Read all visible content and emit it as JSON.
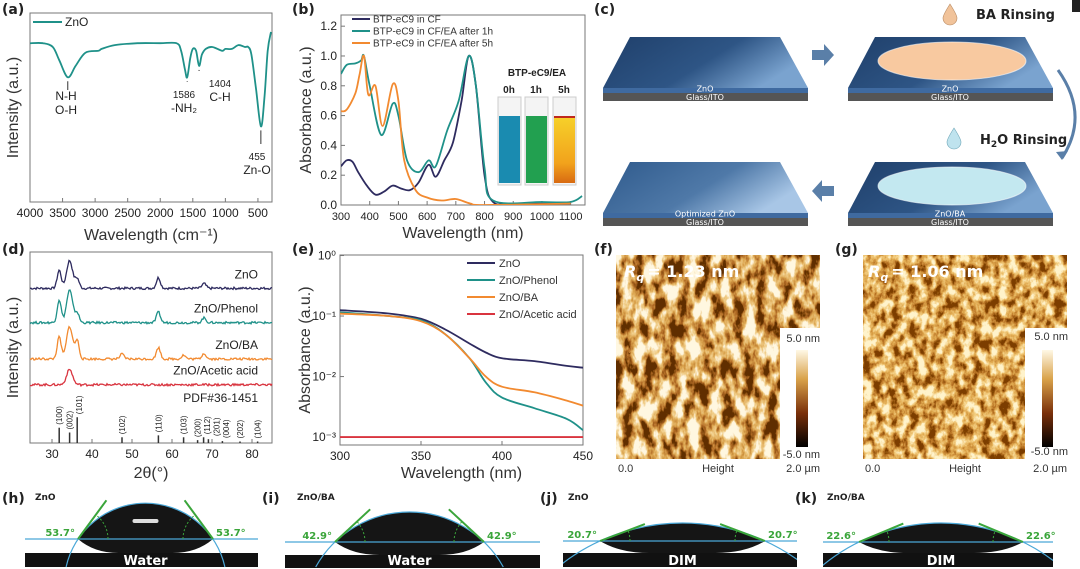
{
  "panel_labels": {
    "a": "(a)",
    "b": "(b)",
    "c": "(c)",
    "d": "(d)",
    "e": "(e)",
    "f": "(f)",
    "g": "(g)",
    "h": "(h)",
    "i": "(i)",
    "j": "(j)",
    "k": "(k)"
  },
  "colors": {
    "navy": "#2e2b5f",
    "teal": "#1f9189",
    "orange": "#f28a30",
    "red": "#d9343f",
    "blue_slab": "#2a4f7c",
    "ba_liquid": "#f8c9a0",
    "water_liquid": "#c3e8f0",
    "tangent": "#3aa53a",
    "baseline": "#4aa8d8"
  },
  "chart_data": [
    {
      "id": "a",
      "type": "line",
      "xlabel": "Wavelength (cm⁻¹)",
      "ylabel": "Intensity (a.u.)",
      "xlim": [
        4000,
        284
      ],
      "ylim": [
        0,
        1
      ],
      "xticks": [
        4000,
        3500,
        3000,
        2500,
        2000,
        1500,
        1000,
        500
      ],
      "legend": "top-left",
      "grid": false,
      "series": [
        {
          "name": "ZnO",
          "color": "#1f9189",
          "points": [
            [
              4000,
              0.84
            ],
            [
              3800,
              0.84
            ],
            [
              3650,
              0.82
            ],
            [
              3550,
              0.75
            ],
            [
              3420,
              0.66
            ],
            [
              3300,
              0.72
            ],
            [
              3150,
              0.79
            ],
            [
              2950,
              0.8
            ],
            [
              2900,
              0.81
            ],
            [
              2700,
              0.83
            ],
            [
              2350,
              0.84
            ],
            [
              2000,
              0.84
            ],
            [
              1750,
              0.84
            ],
            [
              1680,
              0.8
            ],
            [
              1620,
              0.7
            ],
            [
              1586,
              0.66
            ],
            [
              1540,
              0.76
            ],
            [
              1500,
              0.81
            ],
            [
              1450,
              0.8
            ],
            [
              1404,
              0.72
            ],
            [
              1360,
              0.78
            ],
            [
              1300,
              0.81
            ],
            [
              1200,
              0.82
            ],
            [
              1050,
              0.8
            ],
            [
              1000,
              0.81
            ],
            [
              900,
              0.81
            ],
            [
              800,
              0.83
            ],
            [
              700,
              0.82
            ],
            [
              650,
              0.82
            ],
            [
              600,
              0.78
            ],
            [
              530,
              0.6
            ],
            [
              455,
              0.4
            ],
            [
              400,
              0.55
            ],
            [
              350,
              0.8
            ],
            [
              300,
              0.9
            ]
          ]
        }
      ],
      "annotations": [
        {
          "peak": 3420,
          "lines": [
            "N-H",
            "O-H"
          ]
        },
        {
          "peak": 1586,
          "value": "1586",
          "lines": [
            "-NH₂"
          ]
        },
        {
          "peak": 1404,
          "value": "1404",
          "lines": [
            "C-H"
          ]
        },
        {
          "peak": 455,
          "value": "455",
          "lines": [
            "Zn-O"
          ]
        }
      ]
    },
    {
      "id": "b",
      "type": "line",
      "xlabel": "Wavelength (nm)",
      "ylabel": "Absorbance (a.u.)",
      "xlim": [
        300,
        1150
      ],
      "ylim": [
        0,
        1.275
      ],
      "xticks": [
        300,
        400,
        500,
        600,
        700,
        800,
        900,
        1000,
        1100
      ],
      "yticks": [
        "0.0",
        "0.2",
        "0.4",
        "0.6",
        "0.8",
        "1.0",
        "1.2"
      ],
      "legend": "top-left",
      "grid": false,
      "series": [
        {
          "name": "BTP-eC9 in CF",
          "color": "#2e2b5f",
          "points": [
            [
              300,
              0.26
            ],
            [
              320,
              0.3
            ],
            [
              340,
              0.29
            ],
            [
              360,
              0.22
            ],
            [
              390,
              0.13
            ],
            [
              420,
              0.07
            ],
            [
              450,
              0.09
            ],
            [
              480,
              0.13
            ],
            [
              510,
              0.11
            ],
            [
              540,
              0.1
            ],
            [
              570,
              0.15
            ],
            [
              605,
              0.27
            ],
            [
              630,
              0.19
            ],
            [
              660,
              0.3
            ],
            [
              690,
              0.42
            ],
            [
              720,
              0.7
            ],
            [
              745,
              1.0
            ],
            [
              770,
              0.8
            ],
            [
              800,
              0.2
            ],
            [
              830,
              0.02
            ],
            [
              900,
              0.01
            ],
            [
              1100,
              0.01
            ]
          ]
        },
        {
          "name": "BTP-eC9 in CF/EA after 1h",
          "color": "#1f9189",
          "points": [
            [
              300,
              0.88
            ],
            [
              320,
              0.94
            ],
            [
              350,
              0.95
            ],
            [
              370,
              0.97
            ],
            [
              380,
              1.0
            ],
            [
              400,
              0.8
            ],
            [
              440,
              0.47
            ],
            [
              480,
              0.68
            ],
            [
              500,
              0.6
            ],
            [
              530,
              0.3
            ],
            [
              570,
              0.22
            ],
            [
              605,
              0.3
            ],
            [
              630,
              0.26
            ],
            [
              670,
              0.5
            ],
            [
              710,
              0.7
            ],
            [
              745,
              1.0
            ],
            [
              770,
              0.8
            ],
            [
              800,
              0.25
            ],
            [
              830,
              0.03
            ],
            [
              1000,
              0.02
            ],
            [
              1100,
              0.02
            ],
            [
              1140,
              0.06
            ]
          ]
        },
        {
          "name": "BTP-eC9 in CF/EA after 5h",
          "color": "#f28a30",
          "points": [
            [
              300,
              0.63
            ],
            [
              320,
              0.64
            ],
            [
              350,
              0.75
            ],
            [
              365,
              0.88
            ],
            [
              380,
              1.0
            ],
            [
              395,
              0.74
            ],
            [
              420,
              0.8
            ],
            [
              445,
              0.53
            ],
            [
              480,
              0.81
            ],
            [
              500,
              0.7
            ],
            [
              520,
              0.3
            ],
            [
              560,
              0.1
            ],
            [
              600,
              0.05
            ],
            [
              650,
              0.03
            ],
            [
              700,
              0.04
            ],
            [
              750,
              0.01
            ],
            [
              800,
              0.0
            ],
            [
              1100,
              0.01
            ]
          ]
        }
      ],
      "inset": {
        "title": "BTP-eC9/EA",
        "vials": [
          {
            "label": "0h",
            "color": "#1a8bb0"
          },
          {
            "label": "1h",
            "color": "#22a050"
          },
          {
            "label": "5h",
            "color": "#f0b020"
          }
        ]
      }
    },
    {
      "id": "d",
      "type": "line",
      "xlabel": "2θ(°)",
      "ylabel": "Intensity (a.u.)",
      "xlim": [
        24.5,
        85
      ],
      "ylim": [
        0,
        10
      ],
      "xticks": [
        30,
        40,
        50,
        60,
        70,
        80
      ],
      "grid": false,
      "series": [
        {
          "name": "ZnO",
          "color": "#2e2b5f",
          "offset": 8.1,
          "peaks": [
            [
              31.8,
              0.95
            ],
            [
              34.4,
              1.45
            ],
            [
              36.3,
              0.5
            ],
            [
              56.6,
              0.55
            ],
            [
              68,
              0.25
            ]
          ]
        },
        {
          "name": "ZnO/Phenol",
          "color": "#1f9189",
          "offset": 6.3,
          "peaks": [
            [
              31.8,
              1.2
            ],
            [
              34.4,
              1.7
            ],
            [
              36.3,
              0.5
            ],
            [
              56.6,
              0.55
            ],
            [
              68,
              0.25
            ]
          ]
        },
        {
          "name": "ZnO/BA",
          "color": "#f28a30",
          "offset": 4.4,
          "peaks": [
            [
              31.8,
              1.15
            ],
            [
              34.4,
              1.7
            ],
            [
              36.3,
              0.95
            ],
            [
              47.5,
              0.25
            ],
            [
              56.6,
              0.6
            ],
            [
              62.9,
              0.2
            ],
            [
              68,
              0.3
            ]
          ]
        },
        {
          "name": "ZnO/Acetic acid",
          "color": "#d9343f",
          "offset": 3.05,
          "peaks": [
            [
              34.4,
              0.8
            ]
          ]
        }
      ],
      "reference": {
        "name": "PDF#36-1451",
        "lines": [
          [
            31.8,
            0.8,
            "(100)"
          ],
          [
            34.4,
            0.55,
            "(002)"
          ],
          [
            36.3,
            1.35,
            "(101)"
          ],
          [
            47.5,
            0.3,
            "(102)"
          ],
          [
            56.6,
            0.4,
            "(110)"
          ],
          [
            62.9,
            0.3,
            "(103)"
          ],
          [
            66.4,
            0.15,
            "(200)"
          ],
          [
            67.9,
            0.3,
            "(112)"
          ],
          [
            69.1,
            0.2,
            "(201)"
          ],
          [
            72.6,
            0.1,
            "(004)"
          ],
          [
            77,
            0.08,
            "(202)"
          ],
          [
            81.4,
            0.08,
            "(104)"
          ]
        ]
      }
    },
    {
      "id": "e",
      "type": "line",
      "xlabel": "Wavelength (nm)",
      "ylabel": "Absorbance (a.u.)",
      "xlim": [
        300,
        450
      ],
      "ylim": [
        0.00074,
        1.02
      ],
      "yscale": "log",
      "xticks": [
        300,
        350,
        400,
        450
      ],
      "yticks": [
        {
          "value": 1,
          "label": "10⁰"
        },
        {
          "value": 0.1,
          "label": "10⁻¹"
        },
        {
          "value": 0.01,
          "label": "10⁻²"
        },
        {
          "value": 0.001,
          "label": "10⁻³"
        }
      ],
      "legend": "top-right",
      "grid": false,
      "series": [
        {
          "name": "ZnO",
          "color": "#2e2b5f",
          "points": [
            [
              300,
              0.125
            ],
            [
              330,
              0.11
            ],
            [
              350,
              0.09
            ],
            [
              365,
              0.06
            ],
            [
              380,
              0.035
            ],
            [
              390,
              0.025
            ],
            [
              400,
              0.02
            ],
            [
              420,
              0.018
            ],
            [
              440,
              0.015
            ],
            [
              450,
              0.014
            ]
          ]
        },
        {
          "name": "ZnO/Phenol",
          "color": "#1f9189",
          "points": [
            [
              300,
              0.115
            ],
            [
              330,
              0.1
            ],
            [
              350,
              0.085
            ],
            [
              365,
              0.05
            ],
            [
              380,
              0.02
            ],
            [
              390,
              0.008
            ],
            [
              400,
              0.0045
            ],
            [
              420,
              0.003
            ],
            [
              440,
              0.002
            ],
            [
              450,
              0.0013
            ]
          ]
        },
        {
          "name": "ZnO/BA",
          "color": "#f28a30",
          "points": [
            [
              300,
              0.11
            ],
            [
              330,
              0.1
            ],
            [
              350,
              0.082
            ],
            [
              365,
              0.05
            ],
            [
              380,
              0.02
            ],
            [
              390,
              0.01
            ],
            [
              400,
              0.0068
            ],
            [
              420,
              0.0055
            ],
            [
              440,
              0.004
            ],
            [
              450,
              0.0033
            ]
          ]
        },
        {
          "name": "ZnO/Acetic acid",
          "color": "#d9343f",
          "points": [
            [
              300,
              0.001
            ],
            [
              450,
              0.001
            ]
          ]
        }
      ]
    }
  ],
  "scheme": {
    "steps": [
      {
        "film": "ZnO",
        "substrate": "Glass/ITO"
      },
      {
        "film": "ZnO",
        "substrate": "Glass/ITO"
      },
      {
        "film": "ZnO/BA",
        "substrate": "Glass/ITO"
      },
      {
        "film": "Optimized ZnO",
        "substrate": "Glass/ITO"
      }
    ],
    "ba_rinsing": "BA Rinsing",
    "h2o_rinsing_prefix": "H",
    "h2o_rinsing_sub": "2",
    "h2o_rinsing_suffix": "O Rinsing"
  },
  "afm": [
    {
      "rq_symbol": "R",
      "rq_sub": "q",
      "rq_value": "= 1.23 nm",
      "scale_max": "5.0 nm",
      "scale_min": "-5.0 nm",
      "x_start": "0.0",
      "channel": "Height",
      "x_end": "2.0 µm"
    },
    {
      "rq_symbol": "R",
      "rq_sub": "q",
      "rq_value": "= 1.06 nm",
      "scale_max": "5.0 nm",
      "scale_min": "-5.0 nm",
      "x_start": "0.0",
      "channel": "Height",
      "x_end": "2.0 µm"
    }
  ],
  "contact_angles": [
    {
      "sample": "ZnO",
      "liquid": "Water",
      "angle": "53.7°",
      "angle_value": 53.7
    },
    {
      "sample": "ZnO/BA",
      "liquid": "Water",
      "angle": "42.9°",
      "angle_value": 42.9
    },
    {
      "sample": "ZnO",
      "liquid": "DIM",
      "angle": "20.7°",
      "angle_value": 20.7
    },
    {
      "sample": "ZnO/BA",
      "liquid": "DIM",
      "angle": "22.6°",
      "angle_value": 22.6
    }
  ]
}
